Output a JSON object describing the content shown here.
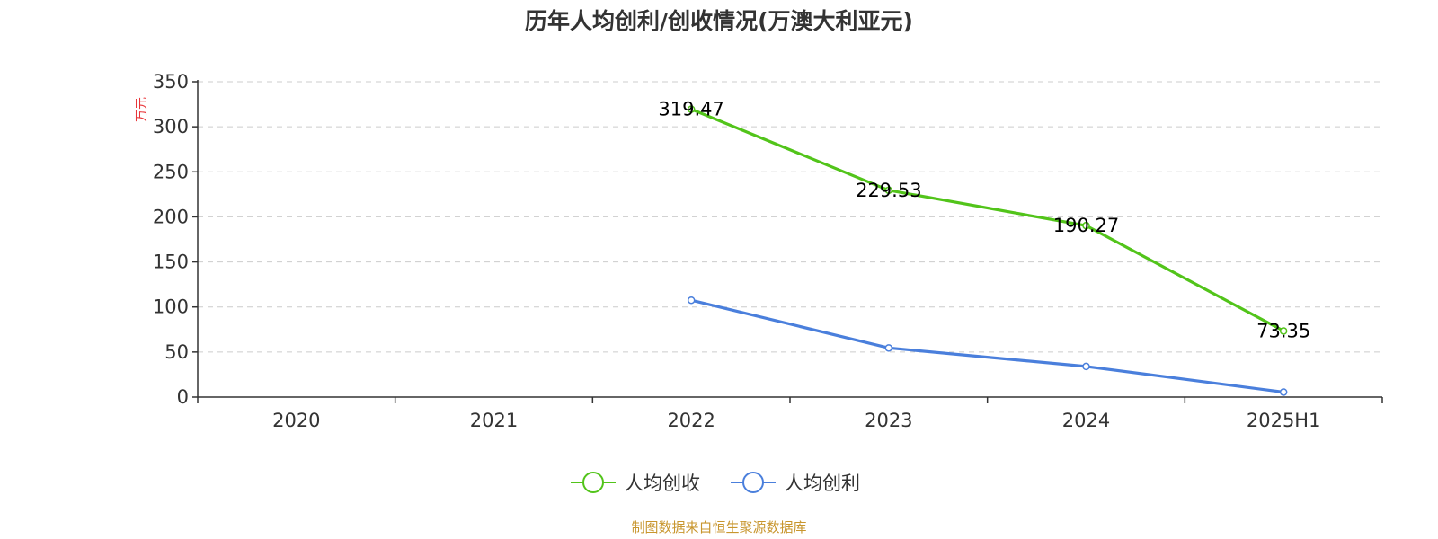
{
  "chart_data": {
    "type": "line",
    "title": "历年人均创利/创收情况(万澳大利亚元)",
    "ylabel": "万元",
    "categories": [
      "2020",
      "2021",
      "2022",
      "2023",
      "2024",
      "2025H1"
    ],
    "ylim": [
      0,
      350
    ],
    "yticks": [
      "0",
      "50",
      "100",
      "150",
      "200",
      "250",
      "300",
      "350"
    ],
    "grid": true,
    "legend_position": "bottom-center",
    "series": [
      {
        "name": "人均创收",
        "color": "#52c41a",
        "values": [
          null,
          null,
          319.47,
          229.53,
          190.27,
          73.35
        ],
        "labels": [
          "",
          "",
          "319.47",
          "229.53",
          "190.27",
          "73.35"
        ]
      },
      {
        "name": "人均创利",
        "color": "#4a7fdc",
        "values": [
          null,
          null,
          107.5,
          54.5,
          34.0,
          5.5
        ],
        "labels": [
          "",
          "",
          "",
          "",
          "",
          ""
        ]
      }
    ],
    "source": "制图数据来自恒生聚源数据库"
  }
}
